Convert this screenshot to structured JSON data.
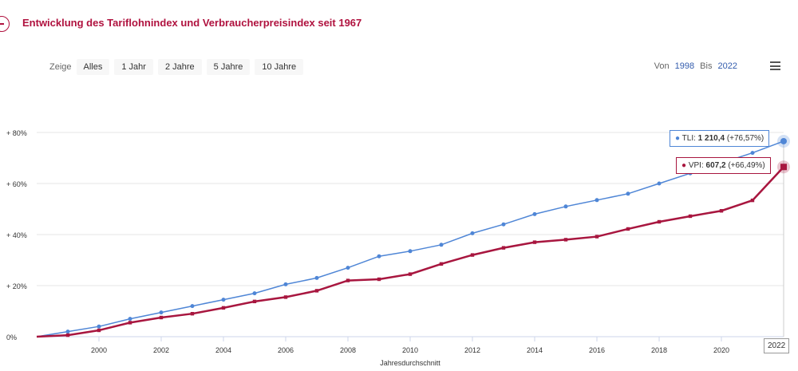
{
  "header": {
    "title": "Entwicklung des Tariflohnindex und Verbraucherpreisindex seit 1967"
  },
  "zoom": {
    "label": "Zeige",
    "buttons": [
      "Alles",
      "1 Jahr",
      "2 Jahre",
      "5 Jahre",
      "10 Jahre"
    ]
  },
  "range": {
    "from_label": "Von",
    "from": "1998",
    "to_label": "Bis",
    "to": "2022"
  },
  "tooltips": {
    "tli": {
      "prefix": "TLI: ",
      "value": "1 210,4",
      "change": " (+76,57%)"
    },
    "vpi": {
      "prefix": "VPI: ",
      "value": "607,2",
      "change": " (+66,49%)"
    },
    "x_badge": "2022"
  },
  "colors": {
    "tli": "#4f86d6",
    "vpi": "#a8163f",
    "accent": "#b0123f"
  },
  "chart_data": {
    "type": "line",
    "title": "Entwicklung des Tariflohnindex und Verbraucherpreisindex seit 1967",
    "xlabel": "Jahresdurchschnitt",
    "ylabel": "",
    "x": [
      1998,
      1999,
      2000,
      2001,
      2002,
      2003,
      2004,
      2005,
      2006,
      2007,
      2008,
      2009,
      2010,
      2011,
      2012,
      2013,
      2014,
      2015,
      2016,
      2017,
      2018,
      2019,
      2020,
      2021,
      2022
    ],
    "xlim": [
      1998,
      2022
    ],
    "ylim": [
      0,
      80
    ],
    "x_ticks": [
      2000,
      2002,
      2004,
      2006,
      2008,
      2010,
      2012,
      2014,
      2016,
      2018,
      2020
    ],
    "y_ticks": [
      0,
      20,
      40,
      60,
      80
    ],
    "y_tick_labels": [
      "0%",
      "+ 20%",
      "+ 40%",
      "+ 60%",
      "+ 80%"
    ],
    "grid": true,
    "series": [
      {
        "name": "TLI",
        "values": [
          0,
          2.0,
          4.0,
          7.0,
          9.5,
          12.0,
          14.5,
          17.0,
          20.5,
          23.0,
          27.0,
          31.5,
          33.5,
          36.0,
          40.5,
          44.0,
          48.0,
          51.0,
          53.5,
          56.0,
          60.0,
          64.0,
          68.0,
          72.0,
          76.57
        ]
      },
      {
        "name": "VPI",
        "values": [
          0,
          0.6,
          2.5,
          5.5,
          7.5,
          9.0,
          11.3,
          13.8,
          15.5,
          18.0,
          22.0,
          22.5,
          24.5,
          28.5,
          32.0,
          34.8,
          37.0,
          38.0,
          39.2,
          42.2,
          45.0,
          47.2,
          49.3,
          53.4,
          66.49
        ]
      }
    ]
  }
}
